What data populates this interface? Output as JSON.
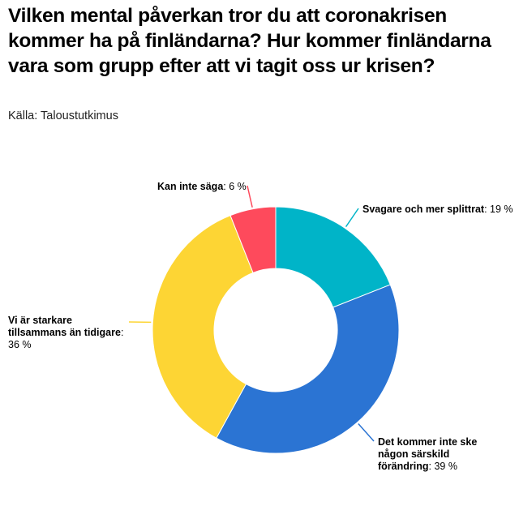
{
  "title": "Vilken mental påverkan tror du att coronakrisen kommer ha på finländarna? Hur kommer finländarna vara som grupp efter att vi tagit oss ur krisen?",
  "source": "Källa: Taloustutkimus",
  "chart_data": {
    "type": "pie",
    "donut": true,
    "slices": [
      {
        "label": "Svagare och mer splittrat",
        "value": 19,
        "value_text": "19 %",
        "color": "#00b4c8"
      },
      {
        "label": "Det kommer inte ske någon särskild förändring",
        "value": 39,
        "value_text": "39 %",
        "color": "#2b74d3"
      },
      {
        "label": "Vi är starkare tillsammans än tidigare",
        "value": 36,
        "value_text": "36 %",
        "color": "#fdd534"
      },
      {
        "label": "Kan inte säga",
        "value": 6,
        "value_text": "6 %",
        "color": "#fe4a5c"
      }
    ]
  }
}
